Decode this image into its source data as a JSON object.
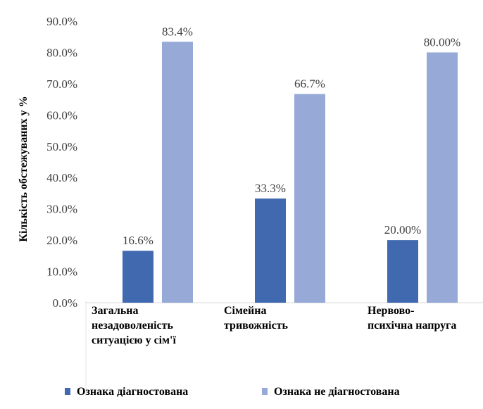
{
  "chart_data": {
    "type": "bar",
    "title": "",
    "xlabel": "",
    "ylabel": "Кількість обстежуваних у %",
    "ylim": [
      0,
      90
    ],
    "ytick_step": 10,
    "yticks": [
      "0.0%",
      "10.0%",
      "20.0%",
      "30.0%",
      "40.0%",
      "50.0%",
      "60.0%",
      "70.0%",
      "80.0%",
      "90.0%"
    ],
    "grid": false,
    "legend_position": "bottom",
    "categories": [
      [
        "Загальна",
        "незадоволеність",
        "ситуацією у сім'ї"
      ],
      [
        "Сімейна",
        "тривожність"
      ],
      [
        "Нервово-",
        "психічна напруга"
      ]
    ],
    "series": [
      {
        "name": "Ознака діагностована",
        "color": "#4169b0",
        "values": [
          16.6,
          33.3,
          20.0
        ],
        "labels": [
          "16.6%",
          "33.3%",
          "20.00%"
        ]
      },
      {
        "name": "Ознака не діагностована",
        "color": "#97a9d6",
        "values": [
          83.4,
          66.7,
          80.0
        ],
        "labels": [
          "83.4%",
          "66.7%",
          "80.00%"
        ]
      }
    ]
  }
}
